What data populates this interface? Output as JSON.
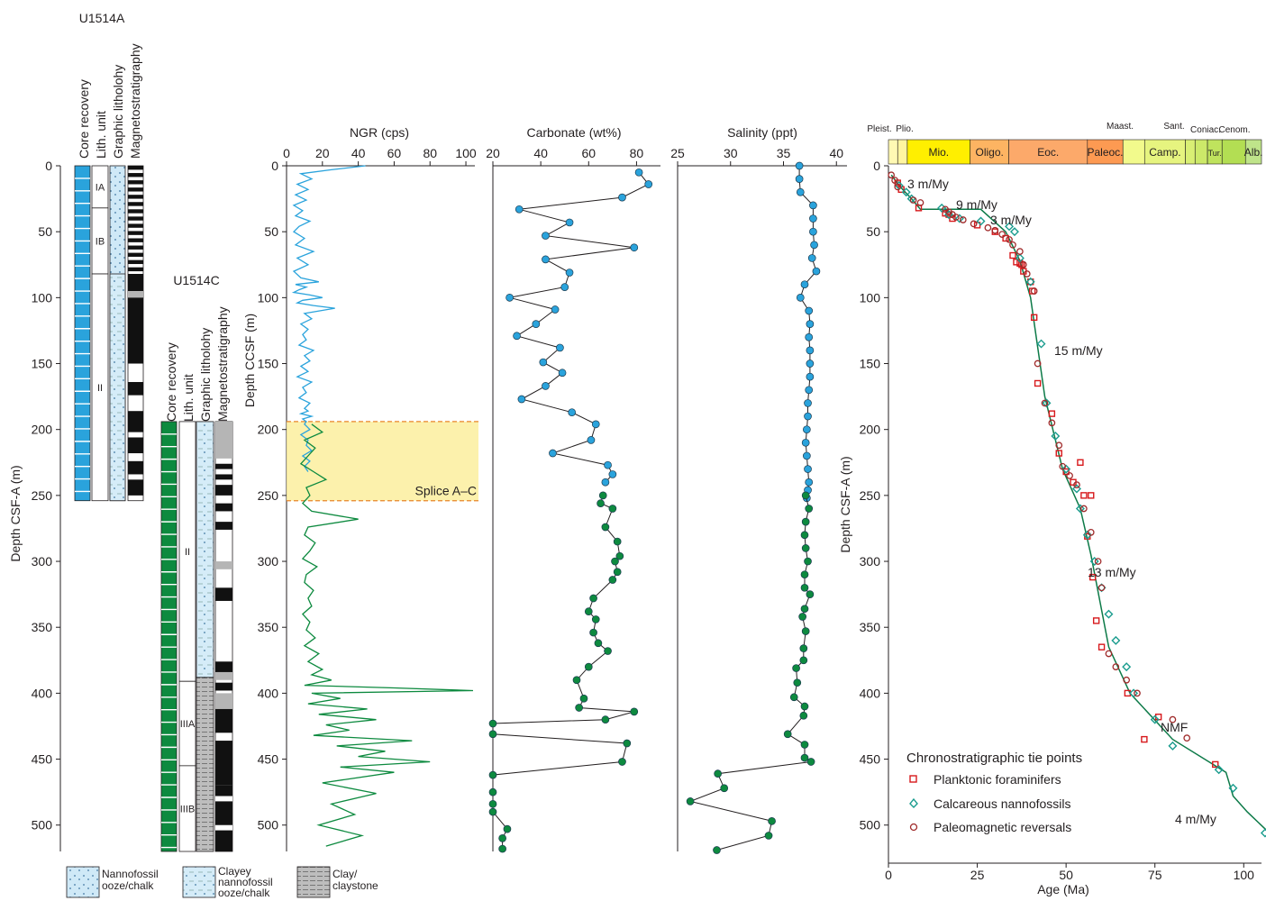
{
  "holes": {
    "a": {
      "name": "U1514A",
      "col_headers": [
        "Core recovery",
        "Lith. unit",
        "Graphic litholohy",
        "Magnetostratigraphy"
      ],
      "units": [
        {
          "label": "IA",
          "top": 0,
          "bottom": 32
        },
        {
          "label": "IB",
          "top": 32,
          "bottom": 82
        },
        {
          "label": "II",
          "top": 82,
          "bottom": 254
        }
      ],
      "bottom_depth": 254
    },
    "c": {
      "name": "U1514C",
      "col_headers": [
        "Core recovery",
        "Lith. unit",
        "Graphic litholohy",
        "Magnetostratigraphy"
      ],
      "units": [
        {
          "label": "II",
          "top": 194,
          "bottom": 391
        },
        {
          "label": "IIIA",
          "top": 391,
          "bottom": 455
        },
        {
          "label": "IIIB",
          "top": 455,
          "bottom": 520
        }
      ],
      "bottom_depth": 520
    }
  },
  "left_axis": {
    "label": "Depth CSF-A (m)",
    "ticks": [
      "0",
      "50",
      "100",
      "150",
      "200",
      "250",
      "300",
      "350",
      "400",
      "450",
      "500"
    ]
  },
  "legend_litho": [
    {
      "label": "Nannofossil ooze/chalk"
    },
    {
      "label": "Clayey nannofossil ooze/chalk"
    },
    {
      "label": "Clay/ claystone"
    }
  ],
  "chart_data": [
    {
      "type": "line",
      "title": "NGR (cps)",
      "ylabel": "Depth CCSF (m)",
      "xlim": [
        0,
        105
      ],
      "ylim": [
        520,
        0
      ],
      "x_ticks": [
        "0",
        "20",
        "40",
        "60",
        "80",
        "100"
      ],
      "y_ticks": [
        "0",
        "50",
        "100",
        "150",
        "200",
        "250",
        "300",
        "350",
        "400",
        "450",
        "500"
      ],
      "annotation": "Splice A–C",
      "splice_band": [
        194,
        254
      ],
      "series": [
        {
          "color": "#2aa3dc",
          "x": [
            44,
            25,
            8,
            14,
            6,
            12,
            5,
            11,
            4,
            9,
            5,
            13,
            7,
            4,
            10,
            5,
            15,
            6,
            12,
            4,
            8,
            18,
            5,
            11,
            7,
            4,
            13,
            20,
            9,
            6,
            15,
            27,
            10,
            14,
            8,
            12,
            9,
            11,
            7,
            15,
            10,
            13,
            8,
            12,
            6,
            14,
            9,
            11,
            7,
            13,
            10,
            12,
            8,
            14,
            9,
            11,
            10,
            13,
            8,
            12,
            11,
            14,
            9,
            13,
            10,
            12
          ],
          "y": [
            0,
            3,
            6,
            10,
            14,
            18,
            22,
            26,
            30,
            34,
            38,
            42,
            46,
            50,
            55,
            60,
            65,
            70,
            75,
            80,
            85,
            88,
            90,
            92,
            94,
            96,
            98,
            100,
            102,
            104,
            106,
            108,
            112,
            116,
            120,
            124,
            128,
            132,
            136,
            140,
            144,
            148,
            152,
            156,
            160,
            164,
            168,
            172,
            176,
            180,
            184,
            186,
            188,
            190,
            192,
            194,
            196,
            200,
            204,
            208,
            212,
            216,
            220,
            224,
            228,
            232
          ]
        },
        {
          "color": "#0d8a3f",
          "x": [
            14,
            20,
            10,
            16,
            12,
            8,
            15,
            22,
            11,
            13,
            9,
            14,
            40,
            12,
            10,
            16,
            13,
            9,
            17,
            11,
            10,
            15,
            12,
            14,
            9,
            13,
            11,
            16,
            10,
            18,
            12,
            20,
            14,
            25,
            10,
            60,
            104,
            14,
            30,
            12,
            45,
            18,
            50,
            22,
            35,
            15,
            70,
            28,
            55,
            40,
            80,
            30,
            60,
            20,
            50,
            25,
            38,
            18,
            42,
            22
          ],
          "y": [
            196,
            202,
            208,
            214,
            220,
            226,
            232,
            238,
            244,
            250,
            256,
            262,
            268,
            274,
            280,
            286,
            292,
            298,
            304,
            310,
            316,
            322,
            328,
            334,
            340,
            346,
            352,
            358,
            364,
            370,
            376,
            382,
            386,
            390,
            394,
            396,
            398,
            400,
            404,
            408,
            412,
            416,
            420,
            424,
            428,
            432,
            436,
            440,
            444,
            448,
            452,
            456,
            460,
            468,
            476,
            484,
            492,
            500,
            508,
            516
          ]
        }
      ]
    },
    {
      "type": "line",
      "title": "Carbonate (wt%)",
      "xlim": [
        20,
        90
      ],
      "ylim": [
        520,
        0
      ],
      "x_ticks": [
        "20",
        "40",
        "60",
        "80"
      ],
      "series": [
        {
          "color": "#2aa3dc",
          "x": [
            81,
            85,
            74,
            31,
            52,
            42,
            79,
            42,
            52,
            50,
            27,
            46,
            38,
            30,
            48,
            41,
            49,
            42,
            32,
            53,
            63,
            61,
            45,
            68,
            70,
            67
          ],
          "y": [
            5,
            14,
            24,
            33,
            43,
            53,
            62,
            71,
            81,
            92,
            100,
            109,
            120,
            129,
            138,
            149,
            157,
            167,
            177,
            187,
            196,
            208,
            218,
            227,
            234,
            240
          ]
        },
        {
          "color": "#0d8a3f",
          "x": [
            66,
            65,
            70,
            67,
            72,
            73,
            71,
            72,
            70,
            62,
            60,
            63,
            62,
            64,
            68,
            60,
            55,
            58,
            56,
            79,
            67,
            20,
            20,
            76,
            74,
            20,
            20,
            20,
            20,
            26,
            24,
            24
          ],
          "y": [
            250,
            256,
            260,
            274,
            285,
            296,
            300,
            308,
            314,
            328,
            338,
            344,
            354,
            362,
            368,
            380,
            390,
            404,
            411,
            414,
            420,
            423,
            431,
            438,
            452,
            462,
            475,
            484,
            490,
            503,
            510,
            518
          ]
        }
      ]
    },
    {
      "type": "line",
      "title": "Salinity (ppt)",
      "xlim": [
        25,
        41
      ],
      "ylim": [
        520,
        0
      ],
      "x_ticks": [
        "25",
        "30",
        "35",
        "40"
      ],
      "series": [
        {
          "color": "#2aa3dc",
          "x": [
            36.5,
            36.5,
            36.6,
            37.8,
            37.8,
            37.8,
            37.9,
            37.7,
            38.1,
            37.0,
            36.6,
            37.4,
            37.5,
            37.4,
            37.5,
            37.5,
            37.5,
            37.4,
            37.3,
            37.3,
            37.2,
            37.1,
            37.2,
            37.3,
            37.4,
            37.3,
            37.2
          ],
          "y": [
            0,
            10,
            20,
            30,
            40,
            50,
            60,
            70,
            80,
            90,
            100,
            110,
            120,
            130,
            140,
            150,
            160,
            170,
            180,
            190,
            200,
            210,
            220,
            230,
            240,
            246,
            252
          ]
        },
        {
          "color": "#0d8a3f",
          "x": [
            37.1,
            37.4,
            37.1,
            37.0,
            37.1,
            37.3,
            37.0,
            37.0,
            37.5,
            37.0,
            36.8,
            37.1,
            36.9,
            36.9,
            36.2,
            36.3,
            36.0,
            37.0,
            36.9,
            35.4,
            37.0,
            37.0,
            37.6,
            28.8,
            29.4,
            26.2,
            33.9,
            33.6,
            28.7
          ],
          "y": [
            250,
            260,
            270,
            280,
            290,
            300,
            310,
            320,
            325,
            336,
            342,
            353,
            366,
            375,
            381,
            392,
            403,
            410,
            417,
            431,
            439,
            449,
            452,
            461,
            472,
            482,
            497,
            508,
            519
          ]
        }
      ]
    },
    {
      "type": "scatter",
      "xlabel": "Age (Ma)",
      "ylabel": "Depth CSF-A (m)",
      "xlim": [
        0,
        105
      ],
      "ylim": [
        520,
        0
      ],
      "x_ticks": [
        "0",
        "25",
        "50",
        "75",
        "100"
      ],
      "y_ticks": [
        "0",
        "50",
        "100",
        "150",
        "200",
        "250",
        "300",
        "350",
        "400",
        "450",
        "500"
      ],
      "legend_title": "Chronostratigraphic tie points",
      "legend": [
        "Planktonic foraminifers",
        "Calcareous nannofossils",
        "Paleomagnetic reversals"
      ],
      "rate_labels": [
        "3 m/My",
        "9 m/My",
        "3 m/My",
        "15 m/My",
        "13 m/My",
        "4 m/My",
        "NMF"
      ],
      "timescale": [
        "Pleist.",
        "Plio.",
        "Mio.",
        "Oligo.",
        "Eoc.",
        "Paleoc.",
        "Maast.",
        "Camp.",
        "Sant.",
        "Coniac.",
        "Tur.",
        "Cenom.",
        "Alb."
      ],
      "series": [
        {
          "name": "Planktonic foraminifers",
          "color": "#d7191c",
          "x": [
            2.6,
            3.6,
            8.5,
            16,
            17,
            18,
            25,
            30,
            33,
            35,
            36,
            37,
            37.5,
            38,
            40,
            40.5,
            41,
            42,
            46,
            48,
            50,
            52,
            54,
            55,
            56,
            57,
            57.5,
            58.5,
            60,
            67.3,
            72,
            76,
            92
          ],
          "y": [
            13,
            18,
            32,
            36,
            37,
            40,
            45,
            50,
            55,
            68,
            73,
            74,
            75,
            80,
            88,
            95,
            115,
            165,
            188,
            218,
            232,
            240,
            225,
            250,
            281,
            250,
            312,
            345,
            365,
            400,
            435,
            418,
            454
          ]
        },
        {
          "name": "Calcareous nannofossils",
          "color": "#1a9c8e",
          "x": [
            3,
            5,
            6.5,
            15,
            17,
            20,
            26,
            34,
            35.5,
            37,
            40,
            43,
            44.5,
            47,
            50,
            53,
            54,
            56,
            58,
            60,
            62,
            64,
            67,
            69,
            75,
            80,
            93,
            97,
            106
          ],
          "y": [
            15,
            20,
            25,
            32,
            37,
            40,
            42,
            46,
            50,
            70,
            88,
            135,
            180,
            205,
            230,
            245,
            260,
            280,
            300,
            320,
            340,
            360,
            380,
            400,
            420,
            440,
            458,
            472,
            506
          ]
        },
        {
          "name": "Paleomagnetic reversals",
          "color": "#a02b2b",
          "x": [
            0.8,
            1.8,
            2.6,
            7,
            9,
            16,
            17,
            18,
            19,
            21,
            24,
            28,
            30,
            32,
            34,
            35,
            37,
            38,
            39,
            41,
            42,
            44,
            46,
            48,
            49,
            51,
            53,
            55,
            57,
            59,
            60,
            62,
            64,
            67,
            70,
            80,
            84
          ],
          "y": [
            7,
            11,
            16,
            26,
            28,
            33,
            35,
            37,
            39,
            41,
            44,
            47,
            49,
            52,
            56,
            60,
            65,
            75,
            82,
            95,
            150,
            180,
            195,
            212,
            228,
            235,
            242,
            260,
            278,
            300,
            320,
            370,
            380,
            390,
            400,
            420,
            434
          ]
        }
      ]
    }
  ]
}
